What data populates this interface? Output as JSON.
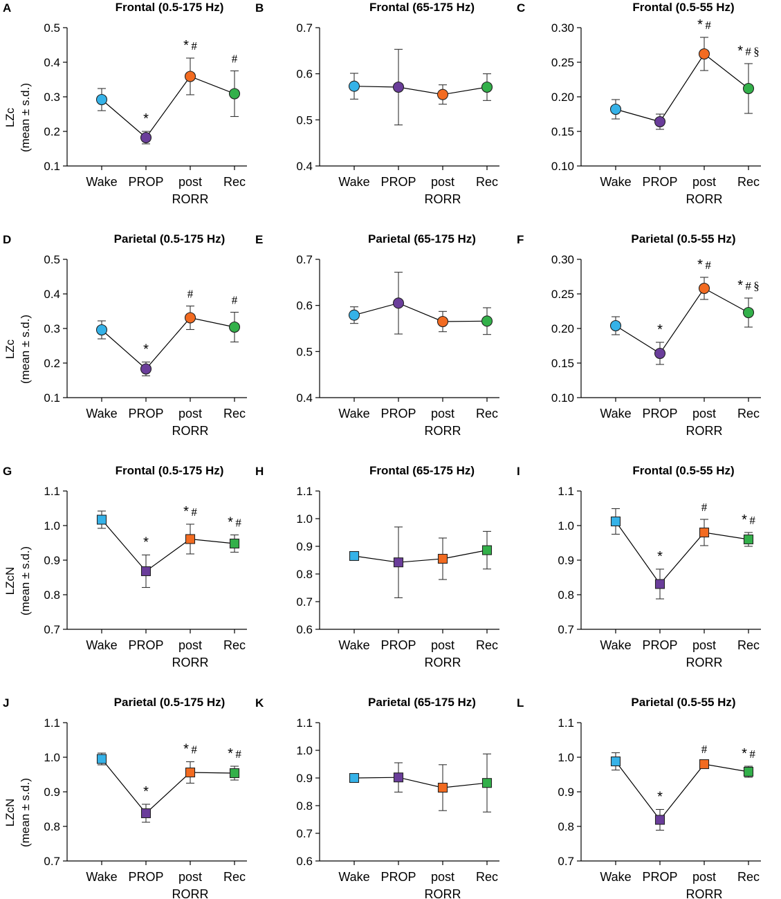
{
  "colors": {
    "Wake": "#35b2e8",
    "PROP": "#6a3d9a",
    "postRORR": "#f26b21",
    "Rec": "#33b04a"
  },
  "categories": [
    "Wake",
    "PROP",
    "post\nRORR",
    "Rec"
  ],
  "y_labels": {
    "lzc": [
      "LZc",
      "(mean ± s.d.)"
    ],
    "lzcn": [
      "LZcN",
      "(mean ± s.d.)"
    ]
  },
  "chart_data": [
    {
      "panel": "A",
      "title": "Frontal (0.5-175 Hz)",
      "type": "line",
      "marker": "circle",
      "ylabel": "lzc",
      "ylim": [
        0.1,
        0.5
      ],
      "yticks": [
        "0.1",
        "0.2",
        "0.3",
        "0.4",
        "0.5"
      ],
      "values": [
        0.292,
        0.182,
        0.359,
        0.309
      ],
      "err": [
        0.032,
        0.018,
        0.053,
        0.066
      ],
      "annotations": [
        "",
        "*",
        "* #",
        "#"
      ]
    },
    {
      "panel": "B",
      "title": "Frontal (65-175 Hz)",
      "type": "line",
      "marker": "circle",
      "ylabel": "",
      "ylim": [
        0.4,
        0.7
      ],
      "yticks": [
        "0.4",
        "0.5",
        "0.6",
        "0.7"
      ],
      "values": [
        0.573,
        0.571,
        0.555,
        0.571
      ],
      "err": [
        0.028,
        0.082,
        0.021,
        0.029
      ],
      "annotations": [
        "",
        "",
        "",
        ""
      ]
    },
    {
      "panel": "C",
      "title": "Frontal (0.5-55 Hz)",
      "type": "line",
      "marker": "circle",
      "ylabel": "",
      "ylim": [
        0.1,
        0.3
      ],
      "yticks": [
        "0.10",
        "0.15",
        "0.20",
        "0.25",
        "0.30"
      ],
      "values": [
        0.182,
        0.164,
        0.262,
        0.212
      ],
      "err": [
        0.014,
        0.011,
        0.024,
        0.036
      ],
      "annotations": [
        "",
        "",
        "* #",
        "* # §"
      ]
    },
    {
      "panel": "D",
      "title": "Parietal (0.5-175 Hz)",
      "type": "line",
      "marker": "circle",
      "ylabel": "lzc",
      "ylim": [
        0.1,
        0.5
      ],
      "yticks": [
        "0.1",
        "0.2",
        "0.3",
        "0.4",
        "0.5"
      ],
      "values": [
        0.296,
        0.183,
        0.331,
        0.304
      ],
      "err": [
        0.026,
        0.02,
        0.034,
        0.043
      ],
      "annotations": [
        "",
        "*",
        "#",
        "#"
      ]
    },
    {
      "panel": "E",
      "title": "Parietal (65-175 Hz)",
      "type": "line",
      "marker": "circle",
      "ylabel": "",
      "ylim": [
        0.4,
        0.7
      ],
      "yticks": [
        "0.4",
        "0.5",
        "0.6",
        "0.7"
      ],
      "values": [
        0.579,
        0.605,
        0.565,
        0.566
      ],
      "err": [
        0.018,
        0.067,
        0.022,
        0.029
      ],
      "annotations": [
        "",
        "",
        "",
        ""
      ]
    },
    {
      "panel": "F",
      "title": "Parietal (0.5-55 Hz)",
      "type": "line",
      "marker": "circle",
      "ylabel": "",
      "ylim": [
        0.1,
        0.3
      ],
      "yticks": [
        "0.10",
        "0.15",
        "0.20",
        "0.25",
        "0.30"
      ],
      "values": [
        0.204,
        0.164,
        0.258,
        0.223
      ],
      "err": [
        0.013,
        0.016,
        0.016,
        0.021
      ],
      "annotations": [
        "",
        "*",
        "* #",
        "* # §"
      ]
    },
    {
      "panel": "G",
      "title": "Frontal (0.5-175 Hz)",
      "type": "line",
      "marker": "square",
      "ylabel": "lzcn",
      "ylim": [
        0.7,
        1.1
      ],
      "yticks": [
        "0.7",
        "0.8",
        "0.9",
        "1.0",
        "1.1"
      ],
      "values": [
        1.017,
        0.868,
        0.961,
        0.948
      ],
      "err": [
        0.025,
        0.047,
        0.043,
        0.025
      ],
      "annotations": [
        "",
        "*",
        "* #",
        "* #"
      ]
    },
    {
      "panel": "H",
      "title": "Frontal (65-175 Hz)",
      "type": "line",
      "marker": "square",
      "ylabel": "",
      "ylim": [
        0.6,
        1.1
      ],
      "yticks": [
        "0.6",
        "0.7",
        "0.8",
        "0.9",
        "1.0",
        "1.1"
      ],
      "values": [
        0.865,
        0.842,
        0.855,
        0.886
      ],
      "err": [
        0.016,
        0.128,
        0.075,
        0.068
      ],
      "annotations": [
        "",
        "",
        "",
        ""
      ]
    },
    {
      "panel": "I",
      "title": "Frontal (0.5-55 Hz)",
      "type": "line",
      "marker": "square",
      "ylabel": "",
      "ylim": [
        0.7,
        1.1
      ],
      "yticks": [
        "0.7",
        "0.8",
        "0.9",
        "1.0",
        "1.1"
      ],
      "values": [
        1.012,
        0.831,
        0.98,
        0.96
      ],
      "err": [
        0.037,
        0.043,
        0.038,
        0.02
      ],
      "annotations": [
        "",
        "*",
        "#",
        "* #"
      ]
    },
    {
      "panel": "J",
      "title": "Parietal (0.5-175 Hz)",
      "type": "line",
      "marker": "square",
      "ylabel": "lzcn",
      "ylim": [
        0.7,
        1.1
      ],
      "yticks": [
        "0.7",
        "0.8",
        "0.9",
        "1.0",
        "1.1"
      ],
      "values": [
        0.995,
        0.838,
        0.956,
        0.954
      ],
      "err": [
        0.017,
        0.026,
        0.031,
        0.02
      ],
      "annotations": [
        "",
        "*",
        "* #",
        "* #"
      ]
    },
    {
      "panel": "K",
      "title": "Parietal (65-175 Hz)",
      "type": "line",
      "marker": "square",
      "ylabel": "",
      "ylim": [
        0.6,
        1.1
      ],
      "yticks": [
        "0.6",
        "0.7",
        "0.8",
        "0.9",
        "1.0",
        "1.1"
      ],
      "values": [
        0.9,
        0.902,
        0.865,
        0.882
      ],
      "err": [
        0.013,
        0.053,
        0.083,
        0.105
      ],
      "annotations": [
        "",
        "",
        "",
        ""
      ]
    },
    {
      "panel": "L",
      "title": "Parietal (0.5-55 Hz)",
      "type": "line",
      "marker": "square",
      "ylabel": "",
      "ylim": [
        0.7,
        1.1
      ],
      "yticks": [
        "0.7",
        "0.8",
        "0.9",
        "1.0",
        "1.1"
      ],
      "values": [
        0.988,
        0.819,
        0.98,
        0.958
      ],
      "err": [
        0.025,
        0.03,
        0.008,
        0.016
      ],
      "annotations": [
        "",
        "*",
        "#",
        "* #"
      ]
    }
  ]
}
